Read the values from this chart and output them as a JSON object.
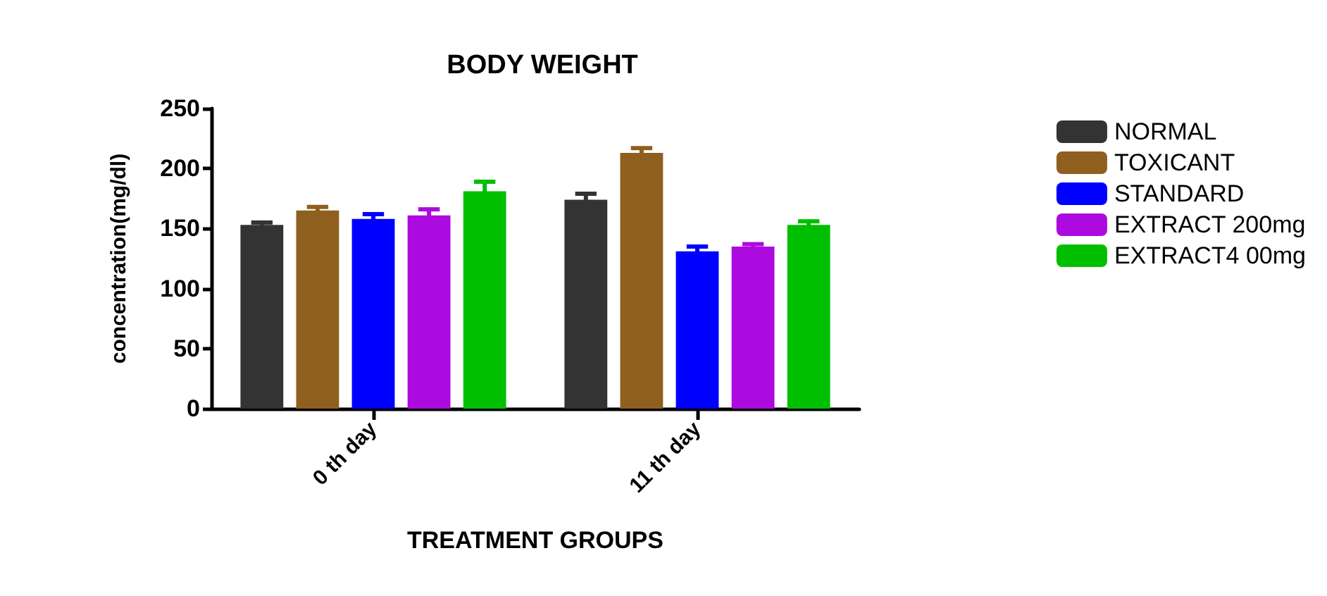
{
  "chart_data": {
    "type": "bar",
    "title": "BODY WEIGHT",
    "xlabel": "TREATMENT GROUPS",
    "ylabel": "concentration(mg/dl)",
    "categories": [
      "0 th day",
      "11 th day"
    ],
    "series": [
      {
        "name": "NORMAL",
        "color": "#333333",
        "values": [
          153,
          174
        ],
        "errors": [
          2,
          5
        ]
      },
      {
        "name": "TOXICANT",
        "color": "#8f5f1f",
        "values": [
          165,
          213
        ],
        "errors": [
          3,
          4
        ]
      },
      {
        "name": "STANDARD",
        "color": "#0000ff",
        "values": [
          158,
          131
        ],
        "errors": [
          4,
          4
        ]
      },
      {
        "name": "EXTRACT 200mg",
        "color": "#ad0ae0",
        "values": [
          161,
          135
        ],
        "errors": [
          5,
          2
        ]
      },
      {
        "name": "EXTRACT4 00mg",
        "color": "#00bf00",
        "values": [
          181,
          153
        ],
        "errors": [
          8,
          3
        ]
      }
    ],
    "ylim": [
      0,
      250
    ],
    "yticks": [
      0,
      50,
      100,
      150,
      200,
      250
    ],
    "grid": false,
    "legend": "right"
  }
}
